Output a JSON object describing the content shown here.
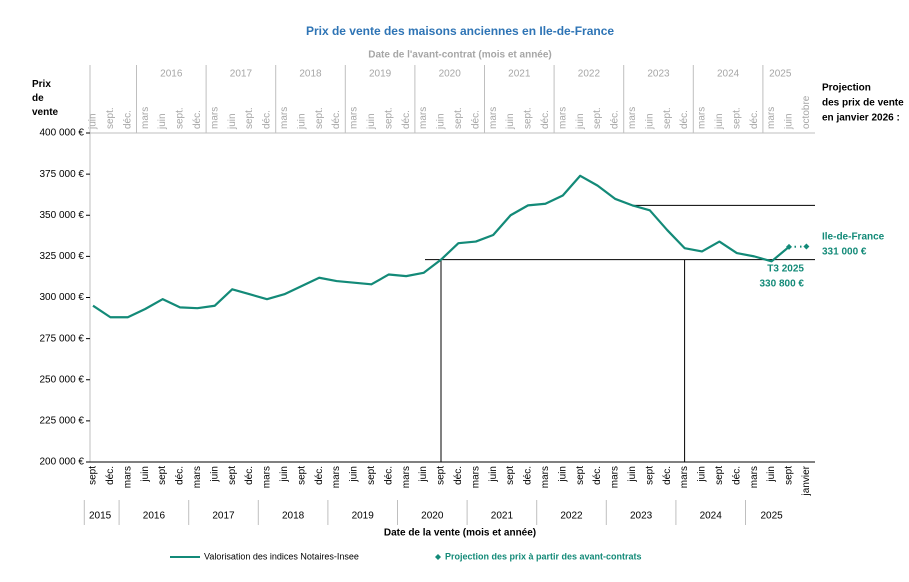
{
  "chart_data": {
    "type": "line",
    "title": "Prix de vente des maisons anciennes en Ile-de-France",
    "x_top_label": "Date de l'avant-contrat  (mois et année)",
    "x_top_categories": [
      "juin",
      "sept.",
      "déc.",
      "mars",
      "juin",
      "sept.",
      "déc.",
      "mars",
      "juin",
      "sept.",
      "déc.",
      "mars",
      "juin",
      "sept.",
      "déc.",
      "mars",
      "juin",
      "sept.",
      "déc.",
      "mars",
      "juin",
      "sept.",
      "déc.",
      "mars",
      "juin",
      "sept.",
      "déc.",
      "mars",
      "juin",
      "sept.",
      "déc.",
      "mars",
      "juin",
      "sept.",
      "déc.",
      "mars",
      "juin",
      "sept.",
      "déc.",
      "mars",
      "juin",
      "octobre"
    ],
    "x_top_years": [
      "2016",
      "2017",
      "2018",
      "2019",
      "2020",
      "2021",
      "2022",
      "2023",
      "2024",
      "2025"
    ],
    "y_label": "Prix de vente",
    "x_label": "Date de la vente (mois et année)",
    "categories": [
      "sept",
      "déc.",
      "mars",
      "juin",
      "sept",
      "déc.",
      "mars",
      "juin",
      "sept",
      "déc.",
      "mars",
      "juin",
      "sept",
      "déc.",
      "mars",
      "juin",
      "sept",
      "déc.",
      "mars",
      "juin",
      "sept",
      "déc.",
      "mars",
      "juin",
      "sept",
      "déc.",
      "mars",
      "juin",
      "sept",
      "déc.",
      "mars",
      "juin",
      "sept",
      "déc.",
      "mars",
      "juin",
      "sept",
      "déc.",
      "mars",
      "juin",
      "sept",
      "janvier"
    ],
    "x_years": [
      "2015",
      "2016",
      "2017",
      "2018",
      "2019",
      "2020",
      "2021",
      "2022",
      "2023",
      "2024",
      "2025"
    ],
    "series": [
      {
        "name": "Valorisation des indices Notaires-Insee",
        "color": "#138a78",
        "values": [
          295000,
          288000,
          288000,
          293000,
          299000,
          294000,
          293500,
          295000,
          305000,
          302000,
          299000,
          302000,
          307000,
          312000,
          310000,
          309000,
          308000,
          314000,
          313000,
          315000,
          323000,
          333000,
          334000,
          338000,
          350000,
          356000,
          357000,
          362000,
          374000,
          368000,
          360000,
          356000,
          353000,
          341000,
          330000,
          328000,
          334000,
          327000,
          325000,
          322000,
          330800,
          null
        ]
      },
      {
        "name": "Projection des prix à partir des avant-contrats",
        "color": "#138a78",
        "marker": "diamond",
        "values": [
          null,
          null,
          null,
          null,
          null,
          null,
          null,
          null,
          null,
          null,
          null,
          null,
          null,
          null,
          null,
          null,
          null,
          null,
          null,
          null,
          null,
          null,
          null,
          null,
          null,
          null,
          null,
          null,
          null,
          null,
          null,
          null,
          null,
          null,
          null,
          null,
          null,
          null,
          null,
          null,
          330800,
          331000
        ]
      }
    ],
    "ylim": [
      200000,
      400000
    ],
    "yticks": [
      {
        "value": 200000,
        "label": "200 000 €"
      },
      {
        "value": 225000,
        "label": "225 000 €"
      },
      {
        "value": 250000,
        "label": "250 000 €"
      },
      {
        "value": 275000,
        "label": "275 000 €"
      },
      {
        "value": 300000,
        "label": "300 000 €"
      },
      {
        "value": 325000,
        "label": "325 000 €"
      },
      {
        "value": 350000,
        "label": "350 000 €"
      },
      {
        "value": 375000,
        "label": "375 000 €"
      },
      {
        "value": 400000,
        "label": "400 000 €"
      }
    ],
    "annotations": [
      "Projection",
      "des prix de vente",
      "en janvier 2026 :",
      "Ile-de-France",
      "331 000 €",
      "T3 2025",
      "330 800 €"
    ]
  }
}
